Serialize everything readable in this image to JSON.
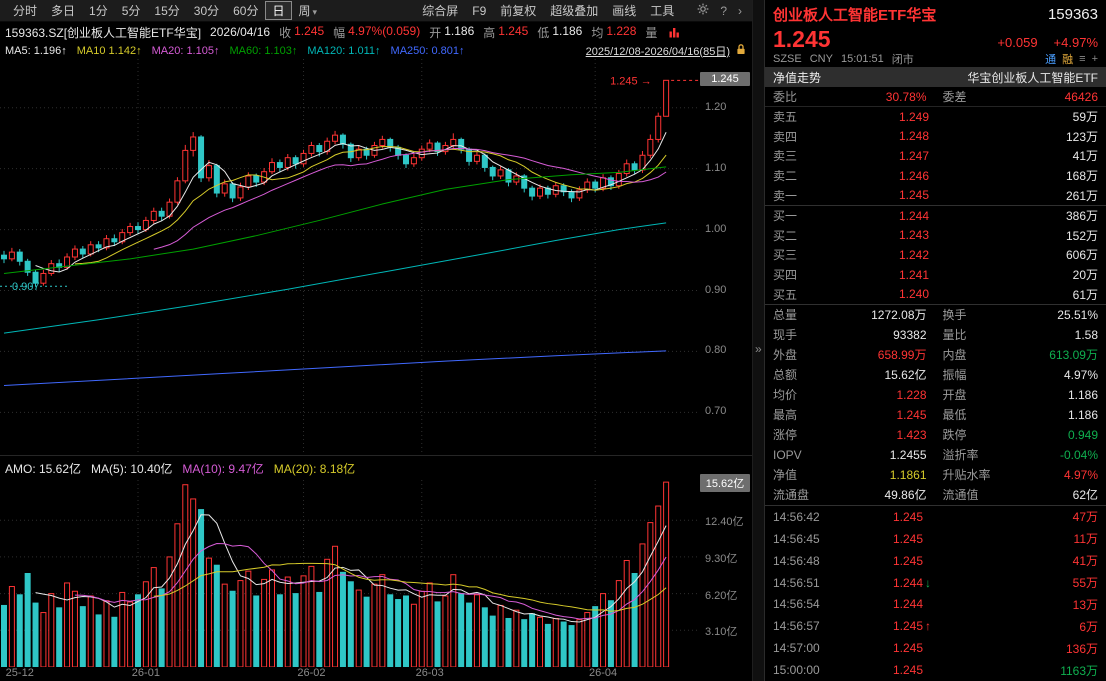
{
  "colors": {
    "red": "#ff3434",
    "cyan": "#2fc7c7",
    "green": "#0faf4f",
    "yellow": "#d6cb2a",
    "magenta": "#d65cd6",
    "ma_green": "#00a000",
    "ma_cyan": "#00b7b7",
    "ma_blue": "#4169ff",
    "label_gray": "#9a9a9a",
    "axis_gray": "#8a8a8a",
    "tag_bg": "#6e6e6e",
    "white": "#e8e8e8",
    "badge_blue": "#4a9eff",
    "badge_gold": "#e2a93b",
    "toolbar_bg": "#1c1c1c",
    "tabbar_bg": "#2e2e2e",
    "grid": "#2e2e2e"
  },
  "toolbar": {
    "periods": [
      {
        "label": "分时"
      },
      {
        "label": "多日"
      },
      {
        "label": "1分"
      },
      {
        "label": "5分"
      },
      {
        "label": "15分"
      },
      {
        "label": "30分"
      },
      {
        "label": "60分"
      },
      {
        "label": "日",
        "selected": true
      },
      {
        "label": "周",
        "dropdown": true
      }
    ],
    "tools": [
      {
        "label": "综合屏"
      },
      {
        "label": "F9"
      },
      {
        "label": "前复权"
      },
      {
        "label": "超级叠加"
      },
      {
        "label": "画线"
      },
      {
        "label": "工具"
      }
    ],
    "help_icon": "?",
    "chevron_icon": "›"
  },
  "info": {
    "symbol": "159363.SZ[创业板人工智能ETF华宝]",
    "date": "2026/04/16",
    "fields": [
      {
        "label": "收",
        "value": "1.245",
        "color": "#ff3434"
      },
      {
        "label": "幅",
        "value": "4.97%(0.059)",
        "color": "#ff3434"
      },
      {
        "label": "开",
        "value": "1.186",
        "color": "#e8e8e8"
      },
      {
        "label": "高",
        "value": "1.245",
        "color": "#ff3434"
      },
      {
        "label": "低",
        "value": "1.186",
        "color": "#e8e8e8"
      },
      {
        "label": "均",
        "value": "1.228",
        "color": "#ff3434"
      },
      {
        "label": "量",
        "value": "",
        "color": "#9a9a9a"
      }
    ]
  },
  "ma_bar": {
    "items": [
      {
        "text": "MA5: 1.196↑",
        "color": "#e8e8e8"
      },
      {
        "text": "MA10 1.142↑",
        "color": "#d6cb2a"
      },
      {
        "text": "MA20: 1.105↑",
        "color": "#d65cd6"
      },
      {
        "text": "MA60: 1.103↑",
        "color": "#00a000"
      },
      {
        "text": "MA120: 1.011↑",
        "color": "#00b7b7"
      },
      {
        "text": "MA250: 0.801↑",
        "color": "#4169ff"
      }
    ],
    "range": "2025/12/08-2026/04/16(85日)"
  },
  "amo_bar": {
    "items": [
      {
        "text": "AMO: 15.62亿",
        "color": "#e8e8e8"
      },
      {
        "text": "MA(5): 10.40亿",
        "color": "#e8e8e8"
      },
      {
        "text": "MA(10): 9.47亿",
        "color": "#d65cd6"
      },
      {
        "text": "MA(20): 8.18亿",
        "color": "#d6cb2a"
      }
    ]
  },
  "chart_data": {
    "type": "candlestick+volume",
    "title": "159363.SZ 创业板人工智能ETF华宝 日K",
    "date_range": "2025/12/08-2026/04/16(85日)",
    "price_axis_range": [
      0.63,
      1.28
    ],
    "y_ticks": [
      1.2,
      1.1,
      1.0,
      0.9,
      0.8,
      0.7
    ],
    "volume_axis_max": 15.8,
    "volume_ticks": [
      12.4,
      9.3,
      6.2,
      3.1
    ],
    "last_price": 1.245,
    "last_price_label": "1.245",
    "low_annotation": 0.907,
    "amo_tag": "15.62亿",
    "x_ticks": [
      {
        "label": "25-12",
        "day": 2
      },
      {
        "label": "26-01",
        "day": 18
      },
      {
        "label": "26-02",
        "day": 39
      },
      {
        "label": "26-03",
        "day": 54
      },
      {
        "label": "26-04",
        "day": 76
      }
    ],
    "month_grid_days": [
      17,
      38,
      53,
      75
    ],
    "ma_computed": [
      {
        "n": 5,
        "color": "#e8e8e8"
      },
      {
        "n": 10,
        "color": "#d6cb2a"
      },
      {
        "n": 20,
        "color": "#d65cd6"
      }
    ],
    "ma_overlays": [
      {
        "name": "MA60",
        "color": "#00a000",
        "points": [
          [
            0,
            0.928
          ],
          [
            8,
            0.94
          ],
          [
            16,
            0.952
          ],
          [
            24,
            0.968
          ],
          [
            32,
            0.99
          ],
          [
            40,
            1.015
          ],
          [
            48,
            1.042
          ],
          [
            56,
            1.066
          ],
          [
            64,
            1.082
          ],
          [
            72,
            1.09
          ],
          [
            78,
            1.094
          ],
          [
            84,
            1.103
          ]
        ]
      },
      {
        "name": "MA120",
        "color": "#00b7b7",
        "points": [
          [
            0,
            0.83
          ],
          [
            12,
            0.852
          ],
          [
            24,
            0.876
          ],
          [
            36,
            0.902
          ],
          [
            48,
            0.93
          ],
          [
            60,
            0.958
          ],
          [
            70,
            0.982
          ],
          [
            78,
            1.0
          ],
          [
            84,
            1.011
          ]
        ]
      },
      {
        "name": "MA250",
        "color": "#4169ff",
        "points": [
          [
            0,
            0.744
          ],
          [
            14,
            0.754
          ],
          [
            28,
            0.764
          ],
          [
            42,
            0.774
          ],
          [
            56,
            0.784
          ],
          [
            70,
            0.793
          ],
          [
            84,
            0.801
          ]
        ]
      }
    ],
    "amo_ma": [
      {
        "n": 5,
        "color": "#e8e8e8"
      },
      {
        "n": 10,
        "color": "#d65cd6"
      },
      {
        "n": 20,
        "color": "#d6cb2a"
      }
    ],
    "candles": [
      [
        0.958,
        0.965,
        0.945,
        0.952,
        5.2
      ],
      [
        0.952,
        0.97,
        0.948,
        0.963,
        6.8
      ],
      [
        0.963,
        0.968,
        0.941,
        0.948,
        6.1
      ],
      [
        0.948,
        0.952,
        0.924,
        0.93,
        7.9
      ],
      [
        0.93,
        0.934,
        0.907,
        0.912,
        5.4
      ],
      [
        0.912,
        0.934,
        0.908,
        0.928,
        4.6
      ],
      [
        0.928,
        0.95,
        0.924,
        0.944,
        6.2
      ],
      [
        0.944,
        0.951,
        0.931,
        0.938,
        5.0
      ],
      [
        0.938,
        0.961,
        0.934,
        0.955,
        7.1
      ],
      [
        0.955,
        0.974,
        0.95,
        0.968,
        6.4
      ],
      [
        0.968,
        0.973,
        0.953,
        0.96,
        5.1
      ],
      [
        0.96,
        0.981,
        0.956,
        0.975,
        6.0
      ],
      [
        0.975,
        0.981,
        0.963,
        0.97,
        4.4
      ],
      [
        0.97,
        0.991,
        0.966,
        0.985,
        5.6
      ],
      [
        0.985,
        0.992,
        0.973,
        0.98,
        4.2
      ],
      [
        0.98,
        1.001,
        0.976,
        0.995,
        6.3
      ],
      [
        0.995,
        1.011,
        0.99,
        1.005,
        5.5
      ],
      [
        1.005,
        1.012,
        0.993,
        1.0,
        6.1
      ],
      [
        1.0,
        1.021,
        0.996,
        1.015,
        7.2
      ],
      [
        1.015,
        1.036,
        1.01,
        1.03,
        8.4
      ],
      [
        1.03,
        1.036,
        1.014,
        1.022,
        6.6
      ],
      [
        1.022,
        1.051,
        1.018,
        1.045,
        9.3
      ],
      [
        1.045,
        1.086,
        1.041,
        1.08,
        12.1
      ],
      [
        1.08,
        1.139,
        1.076,
        1.13,
        15.4
      ],
      [
        1.13,
        1.16,
        1.12,
        1.152,
        14.2
      ],
      [
        1.152,
        1.155,
        1.078,
        1.085,
        13.3
      ],
      [
        1.085,
        1.114,
        1.079,
        1.105,
        9.2
      ],
      [
        1.105,
        1.108,
        1.053,
        1.06,
        8.6
      ],
      [
        1.06,
        1.082,
        1.054,
        1.075,
        7.0
      ],
      [
        1.075,
        1.078,
        1.045,
        1.052,
        6.4
      ],
      [
        1.052,
        1.077,
        1.047,
        1.07,
        7.3
      ],
      [
        1.07,
        1.094,
        1.065,
        1.088,
        8.1
      ],
      [
        1.088,
        1.092,
        1.07,
        1.078,
        6.0
      ],
      [
        1.078,
        1.101,
        1.073,
        1.095,
        7.4
      ],
      [
        1.095,
        1.117,
        1.091,
        1.11,
        8.2
      ],
      [
        1.11,
        1.115,
        1.094,
        1.102,
        6.1
      ],
      [
        1.102,
        1.124,
        1.097,
        1.118,
        7.6
      ],
      [
        1.118,
        1.122,
        1.1,
        1.108,
        6.2
      ],
      [
        1.108,
        1.131,
        1.103,
        1.125,
        7.7
      ],
      [
        1.125,
        1.144,
        1.12,
        1.138,
        8.5
      ],
      [
        1.138,
        1.142,
        1.12,
        1.128,
        6.3
      ],
      [
        1.128,
        1.151,
        1.123,
        1.145,
        9.1
      ],
      [
        1.145,
        1.162,
        1.14,
        1.155,
        10.2
      ],
      [
        1.155,
        1.158,
        1.133,
        1.14,
        8.0
      ],
      [
        1.14,
        1.143,
        1.111,
        1.118,
        7.2
      ],
      [
        1.118,
        1.138,
        1.113,
        1.132,
        6.5
      ],
      [
        1.132,
        1.136,
        1.115,
        1.122,
        5.9
      ],
      [
        1.122,
        1.144,
        1.118,
        1.138,
        7.0
      ],
      [
        1.138,
        1.154,
        1.133,
        1.148,
        7.8
      ],
      [
        1.148,
        1.151,
        1.128,
        1.135,
        6.1
      ],
      [
        1.135,
        1.139,
        1.115,
        1.122,
        5.7
      ],
      [
        1.122,
        1.125,
        1.101,
        1.108,
        6.0
      ],
      [
        1.108,
        1.124,
        1.103,
        1.118,
        5.3
      ],
      [
        1.118,
        1.138,
        1.113,
        1.132,
        6.4
      ],
      [
        1.132,
        1.148,
        1.127,
        1.142,
        7.1
      ],
      [
        1.142,
        1.145,
        1.121,
        1.128,
        5.5
      ],
      [
        1.128,
        1.144,
        1.123,
        1.138,
        6.0
      ],
      [
        1.138,
        1.158,
        1.133,
        1.148,
        7.8
      ],
      [
        1.148,
        1.151,
        1.125,
        1.132,
        6.2
      ],
      [
        1.132,
        1.135,
        1.105,
        1.112,
        5.4
      ],
      [
        1.112,
        1.128,
        1.107,
        1.122,
        6.1
      ],
      [
        1.122,
        1.125,
        1.095,
        1.102,
        5.0
      ],
      [
        1.102,
        1.105,
        1.081,
        1.088,
        4.3
      ],
      [
        1.088,
        1.104,
        1.083,
        1.098,
        5.2
      ],
      [
        1.098,
        1.101,
        1.071,
        1.078,
        4.1
      ],
      [
        1.078,
        1.094,
        1.073,
        1.088,
        4.8
      ],
      [
        1.088,
        1.091,
        1.061,
        1.068,
        4.0
      ],
      [
        1.068,
        1.072,
        1.048,
        1.055,
        4.5
      ],
      [
        1.055,
        1.074,
        1.05,
        1.068,
        4.2
      ],
      [
        1.068,
        1.072,
        1.051,
        1.058,
        3.6
      ],
      [
        1.058,
        1.078,
        1.053,
        1.072,
        4.1
      ],
      [
        1.072,
        1.076,
        1.055,
        1.062,
        3.8
      ],
      [
        1.062,
        1.066,
        1.045,
        1.052,
        3.5
      ],
      [
        1.052,
        1.071,
        1.047,
        1.065,
        4.0
      ],
      [
        1.065,
        1.084,
        1.06,
        1.078,
        4.6
      ],
      [
        1.078,
        1.082,
        1.061,
        1.068,
        5.1
      ],
      [
        1.068,
        1.091,
        1.063,
        1.085,
        6.2
      ],
      [
        1.085,
        1.089,
        1.065,
        1.072,
        5.6
      ],
      [
        1.072,
        1.098,
        1.067,
        1.092,
        7.3
      ],
      [
        1.092,
        1.115,
        1.087,
        1.108,
        9.0
      ],
      [
        1.108,
        1.112,
        1.091,
        1.098,
        7.9
      ],
      [
        1.098,
        1.129,
        1.093,
        1.122,
        10.4
      ],
      [
        1.122,
        1.156,
        1.117,
        1.148,
        12.2
      ],
      [
        1.148,
        1.192,
        1.143,
        1.186,
        13.6
      ],
      [
        1.186,
        1.245,
        1.186,
        1.245,
        15.62
      ]
    ]
  },
  "panel": {
    "name": "创业板人工智能ETF华宝",
    "code": "159363",
    "price": "1.245",
    "change": "+0.059",
    "change_pct": "+4.97%",
    "exchange": "SZSE",
    "currency": "CNY",
    "time": "15:01:51",
    "market_status": "闭市",
    "badge_tong": "通",
    "badge_rong": "融",
    "splitter_icon": "»",
    "tab": "净值走势",
    "full_name": "华宝创业板人工智能ETF",
    "weibi_rows": [
      {
        "l1": "委比",
        "v1": "30.78%",
        "c1": "#ff3434",
        "l2": "委差",
        "v2": "46426",
        "c2": "#ff3434"
      }
    ],
    "sells": [
      {
        "label": "卖五",
        "price": "1.249",
        "vol": "59万"
      },
      {
        "label": "卖四",
        "price": "1.248",
        "vol": "123万"
      },
      {
        "label": "卖三",
        "price": "1.247",
        "vol": "41万"
      },
      {
        "label": "卖二",
        "price": "1.246",
        "vol": "168万"
      },
      {
        "label": "卖一",
        "price": "1.245",
        "vol": "261万"
      }
    ],
    "buys": [
      {
        "label": "买一",
        "price": "1.244",
        "vol": "386万"
      },
      {
        "label": "买二",
        "price": "1.243",
        "vol": "152万"
      },
      {
        "label": "买三",
        "price": "1.242",
        "vol": "606万"
      },
      {
        "label": "买四",
        "price": "1.241",
        "vol": "20万"
      },
      {
        "label": "买五",
        "price": "1.240",
        "vol": "61万"
      }
    ],
    "stats": [
      {
        "l1": "总量",
        "v1": "1272.08万",
        "c1": "#e8e8e8",
        "l2": "换手",
        "v2": "25.51%",
        "c2": "#e8e8e8"
      },
      {
        "l1": "现手",
        "v1": "93382",
        "c1": "#e8e8e8",
        "l2": "量比",
        "v2": "1.58",
        "c2": "#e8e8e8"
      },
      {
        "l1": "外盘",
        "v1": "658.99万",
        "c1": "#ff3434",
        "l2": "内盘",
        "v2": "613.09万",
        "c2": "#0faf4f"
      },
      {
        "l1": "总额",
        "v1": "15.62亿",
        "c1": "#e8e8e8",
        "l2": "振幅",
        "v2": "4.97%",
        "c2": "#e8e8e8"
      },
      {
        "l1": "均价",
        "v1": "1.228",
        "c1": "#ff3434",
        "l2": "开盘",
        "v2": "1.186",
        "c2": "#e8e8e8"
      },
      {
        "l1": "最高",
        "v1": "1.245",
        "c1": "#ff3434",
        "l2": "最低",
        "v2": "1.186",
        "c2": "#e8e8e8"
      },
      {
        "l1": "涨停",
        "v1": "1.423",
        "c1": "#ff3434",
        "l2": "跌停",
        "v2": "0.949",
        "c2": "#0faf4f"
      },
      {
        "l1": "IOPV",
        "v1": "1.2455",
        "c1": "#e8e8e8",
        "l2": "溢折率",
        "v2": "-0.04%",
        "c2": "#0faf4f"
      },
      {
        "l1": "净值",
        "v1": "1.1861",
        "c1": "#d6cb2a",
        "l2": "升贴水率",
        "v2": "4.97%",
        "c2": "#ff3434"
      },
      {
        "l1": "流通盘",
        "v1": "49.86亿",
        "c1": "#e8e8e8",
        "l2": "流通值",
        "v2": "62亿",
        "c2": "#e8e8e8"
      }
    ],
    "ticks": [
      {
        "time": "14:56:42",
        "price": "1.245",
        "arrow": "",
        "ac": "",
        "vol": "47万",
        "vc": "#ff3434"
      },
      {
        "time": "14:56:45",
        "price": "1.245",
        "arrow": "",
        "ac": "",
        "vol": "11万",
        "vc": "#ff3434"
      },
      {
        "time": "14:56:48",
        "price": "1.245",
        "arrow": "",
        "ac": "",
        "vol": "41万",
        "vc": "#ff3434"
      },
      {
        "time": "14:56:51",
        "price": "1.244",
        "arrow": "↓",
        "ac": "#0faf4f",
        "vol": "55万",
        "vc": "#ff3434"
      },
      {
        "time": "14:56:54",
        "price": "1.244",
        "arrow": "",
        "ac": "",
        "vol": "13万",
        "vc": "#ff3434"
      },
      {
        "time": "14:56:57",
        "price": "1.245",
        "arrow": "↑",
        "ac": "#ff3434",
        "vol": "6万",
        "vc": "#ff3434"
      },
      {
        "time": "14:57:00",
        "price": "1.245",
        "arrow": "",
        "ac": "",
        "vol": "136万",
        "vc": "#ff3434"
      },
      {
        "time": "15:00:00",
        "price": "1.245",
        "arrow": "",
        "ac": "",
        "vol": "1163万",
        "vc": "#0faf4f"
      }
    ]
  }
}
